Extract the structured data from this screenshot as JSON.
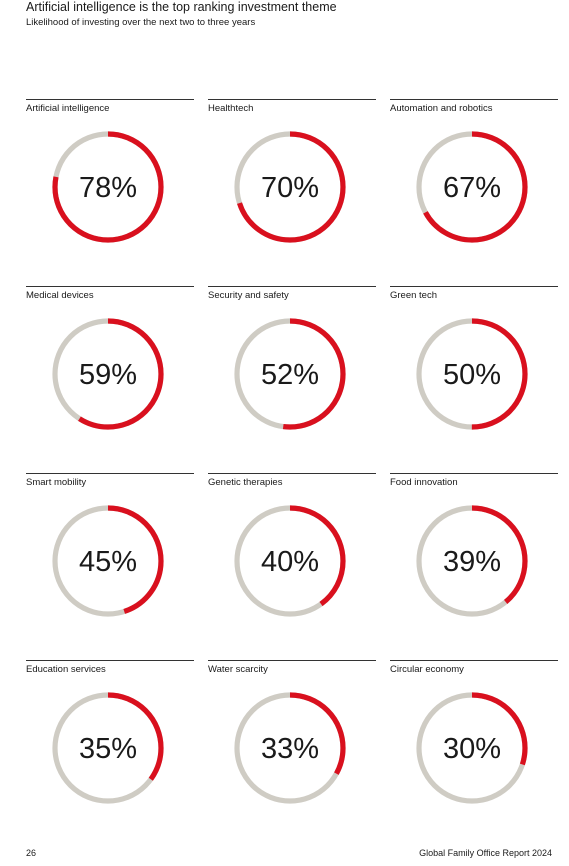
{
  "page": {
    "title": "Artificial intelligence is the top ranking investment theme",
    "subtitle": "Likelihood of investing over the next two to three years",
    "page_number": "26",
    "publication": "Global Family Office Report 2024"
  },
  "colors": {
    "accent": "#d9101e",
    "track": "#cfccc4",
    "rule": "#333333",
    "text": "#1a1a1a"
  },
  "chart_data": {
    "type": "donut",
    "title": "Artificial intelligence is the top ranking investment theme",
    "subtitle": "Likelihood of investing over the next two to three years",
    "unit": "%",
    "max": 100,
    "items": [
      {
        "label": "Artificial intelligence",
        "value": 78,
        "display": "78%"
      },
      {
        "label": "Healthtech",
        "value": 70,
        "display": "70%"
      },
      {
        "label": "Automation and robotics",
        "value": 67,
        "display": "67%"
      },
      {
        "label": "Medical devices",
        "value": 59,
        "display": "59%"
      },
      {
        "label": "Security and safety",
        "value": 52,
        "display": "52%"
      },
      {
        "label": "Green tech",
        "value": 50,
        "display": "50%"
      },
      {
        "label": "Smart mobility",
        "value": 45,
        "display": "45%"
      },
      {
        "label": "Genetic therapies",
        "value": 40,
        "display": "40%"
      },
      {
        "label": "Food innovation",
        "value": 39,
        "display": "39%"
      },
      {
        "label": "Education services",
        "value": 35,
        "display": "35%"
      },
      {
        "label": "Water scarcity",
        "value": 33,
        "display": "33%"
      },
      {
        "label": "Circular economy",
        "value": 30,
        "display": "30%"
      }
    ]
  }
}
